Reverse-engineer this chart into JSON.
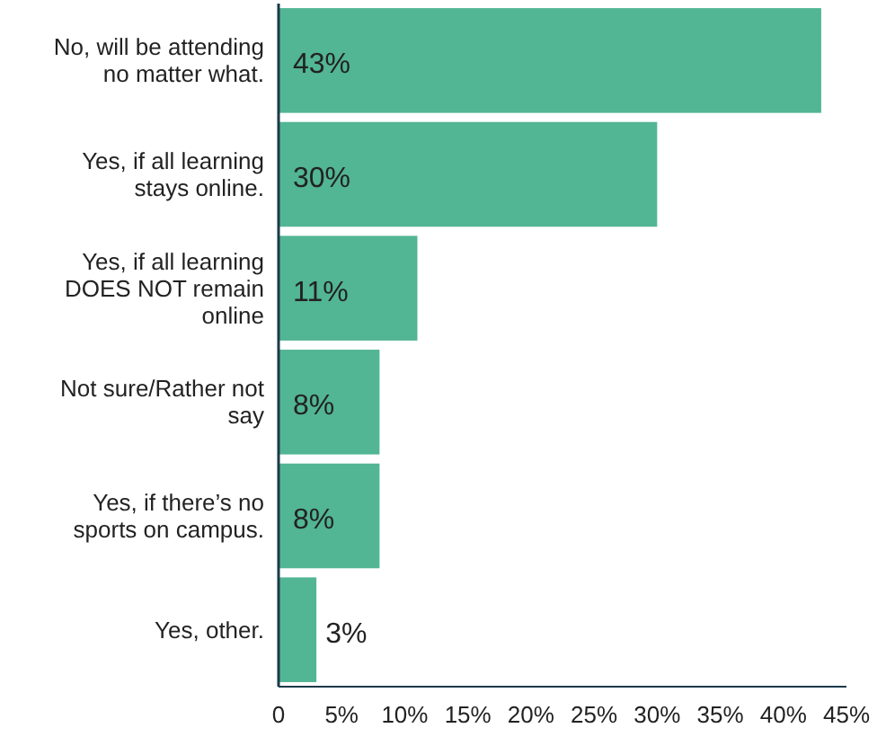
{
  "chart_data": {
    "type": "bar",
    "orientation": "horizontal",
    "categories": [
      "No, will be attending no matter what.",
      "Yes, if all learning stays online.",
      "Yes, if all learning DOES NOT remain online",
      "Not sure/Rather not say",
      "Yes, if there’s no sports on campus.",
      "Yes, other."
    ],
    "values": [
      43,
      30,
      11,
      8,
      8,
      3
    ],
    "color": "#52b594",
    "value_labels": [
      "43%",
      "30%",
      "11%",
      "8%",
      "8%",
      "3%"
    ],
    "xlim": [
      0,
      45
    ],
    "xticks": [
      0,
      {
        "value": 5,
        "label": "5%"
      },
      {
        "value": 10,
        "label": "10%"
      },
      {
        "value": 15,
        "label": "15%"
      },
      {
        "value": 20,
        "label": "20%"
      },
      {
        "value": 25,
        "label": "25%"
      },
      {
        "value": 30,
        "label": "30%"
      },
      {
        "value": 35,
        "label": "35%"
      },
      {
        "value": 40,
        "label": "40%"
      },
      {
        "value": 45,
        "label": "45%"
      }
    ]
  }
}
